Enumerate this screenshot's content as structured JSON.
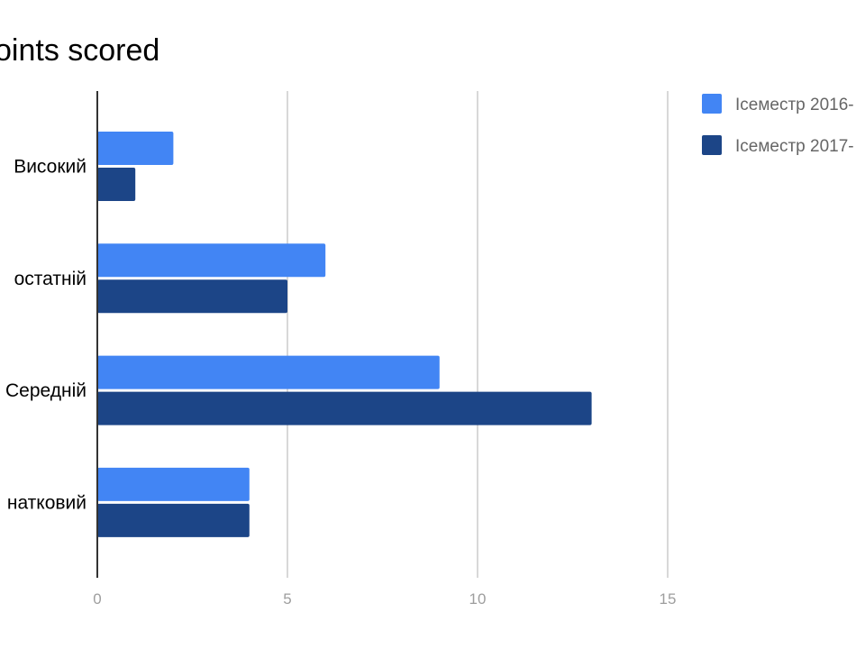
{
  "chart_data": {
    "type": "bar",
    "orientation": "horizontal",
    "title": "oints scored",
    "categories": [
      "Високий",
      "Достатній",
      "Середній",
      "Початковий"
    ],
    "category_labels_visible": [
      "Високий",
      "остатній",
      "Середній",
      "натковий"
    ],
    "series": [
      {
        "name": "Ісеместр 2016-",
        "color": "#4285f4",
        "values": [
          2,
          6,
          9,
          4
        ]
      },
      {
        "name": "Ісеместр 2017-",
        "color": "#1c4587",
        "values": [
          1,
          5,
          13,
          4
        ]
      }
    ],
    "xticks": [
      "0",
      "5",
      "10",
      "15"
    ],
    "xlim": [
      0,
      15
    ],
    "grid": true,
    "legend_position": "top-right"
  }
}
